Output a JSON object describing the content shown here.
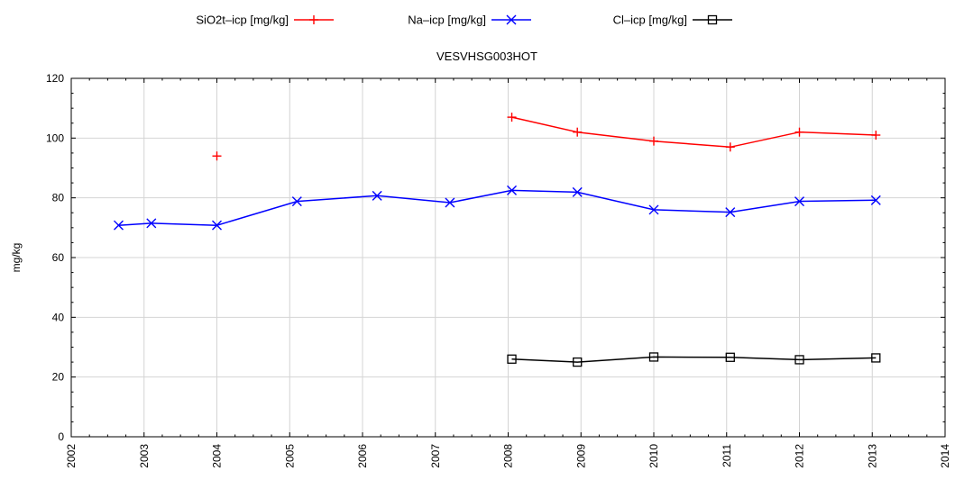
{
  "chart_data": {
    "type": "line",
    "title": "VESVHSG003HOT",
    "xlabel": "",
    "ylabel": "mg/kg",
    "xlim": [
      2002,
      2014
    ],
    "ylim": [
      0,
      120
    ],
    "x_ticks": [
      "2002",
      "2003",
      "2004",
      "2005",
      "2006",
      "2007",
      "2008",
      "2009",
      "2010",
      "2011",
      "2012",
      "2013",
      "2014"
    ],
    "y_ticks": [
      "0",
      "20",
      "40",
      "60",
      "80",
      "100",
      "120"
    ],
    "grid": true,
    "legend_position": "top",
    "series": [
      {
        "name": "SiO2t–icp [mg/kg]",
        "color": "#ff0000",
        "marker": "plus",
        "points": [
          {
            "x": 2004.0,
            "y": 94,
            "connected": false
          },
          {
            "x": 2008.05,
            "y": 107,
            "connected": true
          },
          {
            "x": 2008.95,
            "y": 102,
            "connected": true
          },
          {
            "x": 2010.0,
            "y": 99,
            "connected": true
          },
          {
            "x": 2011.05,
            "y": 97,
            "connected": true
          },
          {
            "x": 2012.0,
            "y": 102,
            "connected": true
          },
          {
            "x": 2013.05,
            "y": 101,
            "connected": true
          }
        ]
      },
      {
        "name": "Na–icp [mg/kg]",
        "color": "#0000ff",
        "marker": "x",
        "points": [
          {
            "x": 2002.65,
            "y": 70.8,
            "connected": true
          },
          {
            "x": 2003.1,
            "y": 71.5,
            "connected": true
          },
          {
            "x": 2004.0,
            "y": 70.8,
            "connected": true
          },
          {
            "x": 2005.1,
            "y": 78.8,
            "connected": true
          },
          {
            "x": 2006.2,
            "y": 80.7,
            "connected": true
          },
          {
            "x": 2007.2,
            "y": 78.4,
            "connected": true
          },
          {
            "x": 2008.05,
            "y": 82.5,
            "connected": true
          },
          {
            "x": 2008.95,
            "y": 81.9,
            "connected": true
          },
          {
            "x": 2010.0,
            "y": 76.0,
            "connected": true
          },
          {
            "x": 2011.05,
            "y": 75.2,
            "connected": true
          },
          {
            "x": 2012.0,
            "y": 78.8,
            "connected": true
          },
          {
            "x": 2013.05,
            "y": 79.2,
            "connected": true
          }
        ]
      },
      {
        "name": "Cl–icp [mg/kg]",
        "color": "#000000",
        "marker": "square",
        "points": [
          {
            "x": 2008.05,
            "y": 26.0,
            "connected": true
          },
          {
            "x": 2008.95,
            "y": 25.0,
            "connected": true
          },
          {
            "x": 2010.0,
            "y": 26.7,
            "connected": true
          },
          {
            "x": 2011.05,
            "y": 26.6,
            "connected": true
          },
          {
            "x": 2012.0,
            "y": 25.8,
            "connected": true
          },
          {
            "x": 2013.05,
            "y": 26.4,
            "connected": true
          }
        ]
      }
    ]
  }
}
